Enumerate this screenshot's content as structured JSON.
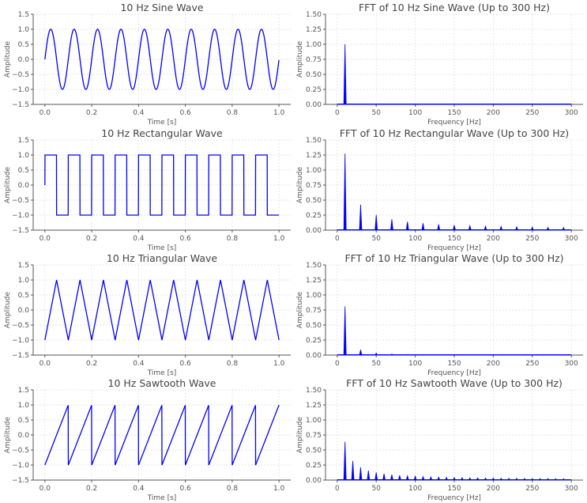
{
  "chart_data": [
    {
      "type": "line",
      "title": "10 Hz Sine Wave",
      "xlabel": "Time [s]",
      "ylabel": "Amplitude",
      "waveform": "sine",
      "frequency_hz": 10,
      "amplitude": 1,
      "xlim": [
        -0.05,
        1.05
      ],
      "ylim": [
        -1.5,
        1.5
      ],
      "xticks": [
        "0.0",
        "0.2",
        "0.4",
        "0.6",
        "0.8",
        "1.0"
      ],
      "yticks": [
        "−1.5",
        "−1.0",
        "−0.5",
        "0.0",
        "0.5",
        "1.0",
        "1.5"
      ],
      "grid": true,
      "color": "#0000ff"
    },
    {
      "type": "line",
      "title": "FFT of 10 Hz Sine Wave (Up to 300 Hz)",
      "xlabel": "Frequency [Hz]",
      "ylabel": "Amplitude",
      "peaks": {
        "frequencies": [
          10
        ],
        "amplitudes": [
          1.0
        ]
      },
      "xlim": [
        -15,
        315
      ],
      "ylim": [
        0,
        1.5
      ],
      "xticks": [
        "0",
        "50",
        "100",
        "150",
        "200",
        "250",
        "300"
      ],
      "yticks": [
        "0.00",
        "0.25",
        "0.50",
        "0.75",
        "1.00",
        "1.25",
        "1.50"
      ],
      "grid": true,
      "color": "#0000ff"
    },
    {
      "type": "line",
      "title": "10 Hz Rectangular Wave",
      "xlabel": "Time [s]",
      "ylabel": "Amplitude",
      "waveform": "square",
      "frequency_hz": 10,
      "amplitude": 1,
      "xlim": [
        -0.05,
        1.05
      ],
      "ylim": [
        -1.5,
        1.5
      ],
      "xticks": [
        "0.0",
        "0.2",
        "0.4",
        "0.6",
        "0.8",
        "1.0"
      ],
      "yticks": [
        "−1.5",
        "−1.0",
        "−0.5",
        "0.0",
        "0.5",
        "1.0",
        "1.5"
      ],
      "grid": true,
      "color": "#0000ff"
    },
    {
      "type": "line",
      "title": "FFT of 10 Hz Rectangular Wave (Up to 300 Hz)",
      "xlabel": "Frequency [Hz]",
      "ylabel": "Amplitude",
      "peaks": {
        "frequencies": [
          10,
          30,
          50,
          70,
          90,
          110,
          130,
          150,
          170,
          190,
          210,
          230,
          250,
          270,
          290
        ],
        "amplitudes": [
          1.273,
          0.424,
          0.255,
          0.182,
          0.141,
          0.116,
          0.098,
          0.085,
          0.075,
          0.067,
          0.061,
          0.055,
          0.051,
          0.047,
          0.044
        ]
      },
      "xlim": [
        -15,
        315
      ],
      "ylim": [
        0,
        1.5
      ],
      "xticks": [
        "0",
        "50",
        "100",
        "150",
        "200",
        "250",
        "300"
      ],
      "yticks": [
        "0.00",
        "0.25",
        "0.50",
        "0.75",
        "1.00",
        "1.25",
        "1.50"
      ],
      "grid": true,
      "color": "#0000ff"
    },
    {
      "type": "line",
      "title": "10 Hz Triangular Wave",
      "xlabel": "Time [s]",
      "ylabel": "Amplitude",
      "waveform": "triangle",
      "frequency_hz": 10,
      "amplitude": 1,
      "xlim": [
        -0.05,
        1.05
      ],
      "ylim": [
        -1.5,
        1.5
      ],
      "xticks": [
        "0.0",
        "0.2",
        "0.4",
        "0.6",
        "0.8",
        "1.0"
      ],
      "yticks": [
        "−1.5",
        "−1.0",
        "−0.5",
        "0.0",
        "0.5",
        "1.0",
        "1.5"
      ],
      "grid": true,
      "color": "#0000ff"
    },
    {
      "type": "line",
      "title": "FFT of 10 Hz Triangular Wave (Up to 300 Hz)",
      "xlabel": "Frequency [Hz]",
      "ylabel": "Amplitude",
      "peaks": {
        "frequencies": [
          10,
          30,
          50,
          70,
          90,
          110,
          130,
          150
        ],
        "amplitudes": [
          0.811,
          0.09,
          0.032,
          0.017,
          0.01,
          0.007,
          0.005,
          0.004
        ]
      },
      "xlim": [
        -15,
        315
      ],
      "ylim": [
        0,
        1.5
      ],
      "xticks": [
        "0",
        "50",
        "100",
        "150",
        "200",
        "250",
        "300"
      ],
      "yticks": [
        "0.00",
        "0.25",
        "0.50",
        "0.75",
        "1.00",
        "1.25",
        "1.50"
      ],
      "grid": true,
      "color": "#0000ff"
    },
    {
      "type": "line",
      "title": "10 Hz Sawtooth Wave",
      "xlabel": "Time [s]",
      "ylabel": "Amplitude",
      "waveform": "sawtooth",
      "frequency_hz": 10,
      "amplitude": 1,
      "xlim": [
        -0.05,
        1.05
      ],
      "ylim": [
        -1.5,
        1.5
      ],
      "xticks": [
        "0.0",
        "0.2",
        "0.4",
        "0.6",
        "0.8",
        "1.0"
      ],
      "yticks": [
        "−1.5",
        "−1.0",
        "−0.5",
        "0.0",
        "0.5",
        "1.0",
        "1.5"
      ],
      "grid": true,
      "color": "#0000ff"
    },
    {
      "type": "line",
      "title": "FFT of 10 Hz Sawtooth Wave (Up to 300 Hz)",
      "xlabel": "Frequency [Hz]",
      "ylabel": "Amplitude",
      "peaks": {
        "frequencies": [
          10,
          20,
          30,
          40,
          50,
          60,
          70,
          80,
          90,
          100,
          110,
          120,
          130,
          140,
          150,
          160,
          170,
          180,
          190,
          200,
          210,
          220,
          230,
          240,
          250,
          260,
          270,
          280,
          290
        ],
        "amplitudes": [
          0.637,
          0.318,
          0.212,
          0.159,
          0.127,
          0.106,
          0.091,
          0.08,
          0.071,
          0.064,
          0.058,
          0.053,
          0.049,
          0.045,
          0.042,
          0.04,
          0.037,
          0.035,
          0.034,
          0.032,
          0.03,
          0.029,
          0.028,
          0.027,
          0.025,
          0.024,
          0.024,
          0.023,
          0.022
        ]
      },
      "xlim": [
        -15,
        315
      ],
      "ylim": [
        0,
        1.5
      ],
      "xticks": [
        "0",
        "50",
        "100",
        "150",
        "200",
        "250",
        "300"
      ],
      "yticks": [
        "0.00",
        "0.25",
        "0.50",
        "0.75",
        "1.00",
        "1.25",
        "1.50"
      ],
      "grid": true,
      "color": "#0000ff"
    }
  ]
}
